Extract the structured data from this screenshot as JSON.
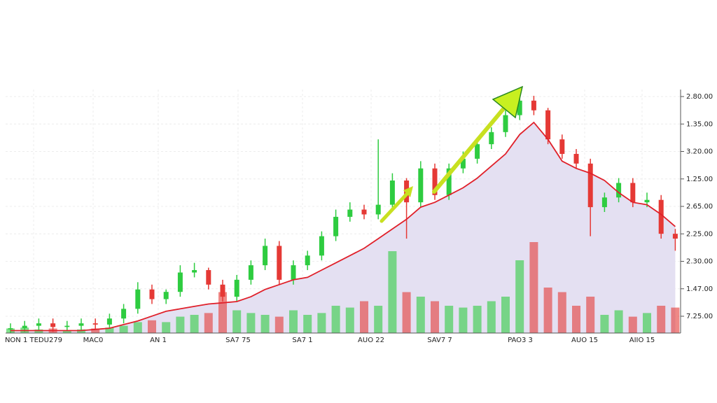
{
  "chart_data": {
    "type": "candlestick",
    "x_labels": [
      "NON 1 TEDU279",
      "MAC0",
      "AN 1",
      "SA7 75",
      "SA7 1",
      "AUO 22",
      "SAV7 7",
      "PAO3 3",
      "AUO 15",
      "AIIO 15"
    ],
    "y_labels": [
      "2.80.00",
      "1.35.00",
      "3.20.00",
      "1.25.00",
      "2.65.00",
      "2.25.00",
      "2.30.00",
      "1.47.00",
      "7.25.00"
    ],
    "ylim": [
      0,
      100
    ],
    "volume_lim": [
      0,
      100
    ],
    "up_color": "#2ecc40",
    "down_color": "#e53935",
    "ma_color": "#e0202a",
    "area_color": "#e4e0f2",
    "grid": true,
    "open": [
      1.5,
      2,
      3,
      4,
      2.5,
      3,
      4,
      3.5,
      6,
      10,
      18,
      14,
      17,
      25,
      26,
      20,
      15,
      22,
      28,
      36,
      22,
      28,
      32,
      40,
      48,
      51,
      49,
      53,
      63,
      54,
      68,
      57,
      68,
      72,
      78,
      83,
      90,
      96,
      92,
      80,
      74,
      70,
      52,
      56,
      62,
      54,
      55,
      41
    ],
    "high": [
      4,
      5,
      6,
      6,
      5,
      6,
      6,
      8,
      12,
      21,
      20,
      18,
      28,
      29,
      27,
      22,
      24,
      30,
      39,
      38,
      30,
      34,
      42,
      51,
      54,
      53,
      80,
      66,
      64,
      71,
      70,
      70,
      75,
      80,
      85,
      92,
      99,
      98,
      93,
      82,
      76,
      72,
      58,
      64,
      64,
      58,
      57,
      43
    ],
    "low": [
      0,
      0.5,
      1,
      0.5,
      1,
      1,
      1.5,
      2,
      4,
      8,
      12,
      12,
      15,
      23,
      18,
      13,
      13,
      20,
      26,
      20,
      20,
      26,
      30,
      38,
      46,
      47,
      47,
      51,
      39,
      52,
      55,
      55,
      66,
      70,
      76,
      81,
      88,
      90,
      78,
      72,
      68,
      40,
      50,
      54,
      52,
      52,
      39,
      34
    ],
    "close": [
      2,
      3,
      4,
      2.5,
      3,
      4,
      3.5,
      6,
      10,
      18,
      14,
      17,
      25,
      26,
      20,
      15,
      22,
      28,
      36,
      22,
      28,
      32,
      40,
      48,
      51,
      49,
      53,
      63,
      54,
      68,
      57,
      68,
      72,
      78,
      83,
      90,
      96,
      92,
      80,
      74,
      70,
      52,
      56,
      62,
      54,
      55,
      41,
      39
    ],
    "volume": [
      5,
      6,
      4,
      5,
      3,
      4,
      5,
      6,
      8,
      12,
      14,
      12,
      18,
      20,
      22,
      45,
      25,
      22,
      20,
      18,
      25,
      20,
      22,
      30,
      28,
      35,
      30,
      90,
      45,
      40,
      35,
      30,
      28,
      30,
      35,
      40,
      80,
      100,
      50,
      45,
      30,
      40,
      20,
      25,
      18,
      22,
      30,
      28
    ],
    "ma": [
      1,
      1,
      1,
      1,
      1,
      1,
      1.5,
      2,
      3.5,
      5,
      7,
      9,
      10,
      11,
      12,
      12.5,
      13,
      15,
      18,
      20,
      22,
      23,
      26,
      29,
      32,
      35,
      39,
      43,
      47,
      52,
      54,
      57,
      60,
      64,
      69,
      74,
      82,
      87,
      80,
      71,
      68,
      66,
      63,
      58,
      54,
      53,
      49,
      44
    ]
  }
}
